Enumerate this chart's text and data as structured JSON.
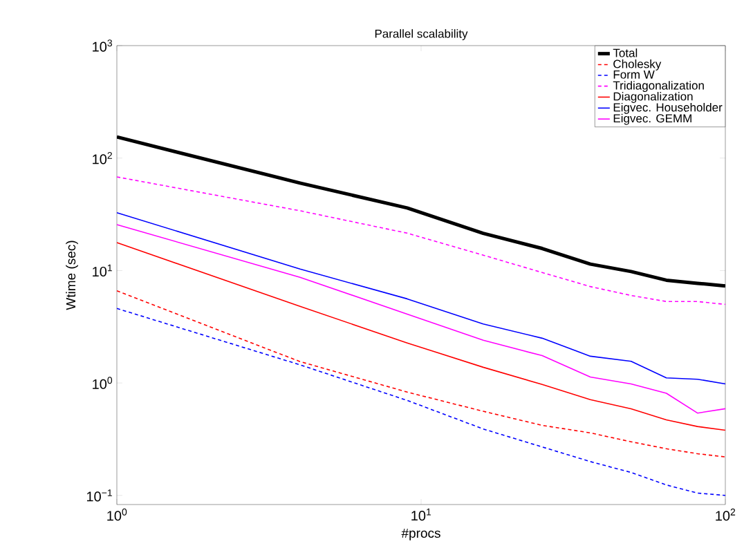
{
  "chart_data": {
    "type": "line",
    "title": "Parallel scalability",
    "xlabel": "#procs",
    "ylabel": "Wtime (sec)",
    "log": "xy",
    "x": [
      1,
      4,
      9,
      16,
      25,
      36,
      49,
      64,
      81,
      100
    ],
    "xlim": [
      1,
      100
    ],
    "ylim": [
      0.083,
      1000
    ],
    "xticks": [
      {
        "value": 1,
        "label": "10$^{0}$"
      },
      {
        "value": 10,
        "label": "10$^{1}$"
      },
      {
        "value": 100,
        "label": "10$^{2}$"
      }
    ],
    "yticks": [
      {
        "value": 0.1,
        "label": "10$^{−1}$"
      },
      {
        "value": 1,
        "label": "10$^{0}$"
      },
      {
        "value": 10,
        "label": "10$^{1}$"
      },
      {
        "value": 100,
        "label": "10$^{2}$"
      },
      {
        "value": 1000,
        "label": "10$^{3}$"
      }
    ],
    "grid": false,
    "legend": "top right",
    "marker": "none",
    "series": [
      {
        "name": "Total",
        "color": "#000000",
        "line_style": "solid",
        "values": [
          154,
          60,
          36,
          21.4,
          15.7,
          11.4,
          9.8,
          8.2,
          7.7,
          7.3
        ]
      },
      {
        "name": "Cholesky",
        "color": "#ff0000",
        "line_style": "dashed",
        "values": [
          6.6,
          1.55,
          0.83,
          0.56,
          0.42,
          0.36,
          0.3,
          0.26,
          0.235,
          0.22
        ]
      },
      {
        "name": "Form W",
        "color": "#0000ff",
        "line_style": "dashed",
        "values": [
          4.6,
          1.45,
          0.7,
          0.39,
          0.27,
          0.2,
          0.16,
          0.124,
          0.105,
          0.1
        ]
      },
      {
        "name": "Tridiagonalization",
        "color": "#ff00ff",
        "line_style": "dashed",
        "values": [
          68,
          34,
          21.5,
          13.7,
          9.6,
          7.2,
          6.0,
          5.3,
          5.3,
          5.0
        ]
      },
      {
        "name": "Diagonalization",
        "color": "#ff0000",
        "line_style": "solid",
        "values": [
          17.7,
          4.8,
          2.27,
          1.38,
          0.97,
          0.71,
          0.59,
          0.47,
          0.41,
          0.38
        ]
      },
      {
        "name": "Eigvec. Householder",
        "color": "#0000ff",
        "line_style": "solid",
        "values": [
          32.7,
          10.3,
          5.6,
          3.35,
          2.5,
          1.73,
          1.56,
          1.11,
          1.08,
          0.98
        ]
      },
      {
        "name": "Eigvec. GEMM",
        "color": "#ff00ff",
        "line_style": "solid",
        "values": [
          25.6,
          8.7,
          4.1,
          2.4,
          1.75,
          1.13,
          0.98,
          0.81,
          0.54,
          0.59
        ]
      }
    ]
  }
}
